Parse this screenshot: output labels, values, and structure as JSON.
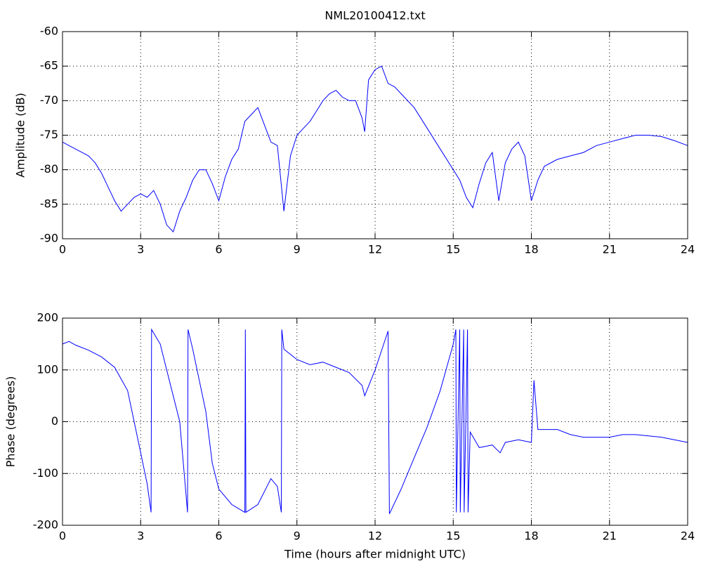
{
  "chart_data": [
    {
      "type": "line",
      "title": "NML20100412.txt",
      "ylabel": "Amplitude (dB)",
      "x": [
        0,
        0.25,
        0.5,
        0.75,
        1,
        1.25,
        1.5,
        1.75,
        2,
        2.25,
        2.5,
        2.75,
        3,
        3.25,
        3.5,
        3.75,
        4,
        4.25,
        4.5,
        4.75,
        5,
        5.25,
        5.5,
        5.75,
        6,
        6.25,
        6.5,
        6.75,
        7,
        7.25,
        7.5,
        7.75,
        8,
        8.25,
        8.5,
        8.75,
        9,
        9.25,
        9.5,
        9.75,
        10,
        10.25,
        10.5,
        10.75,
        11,
        11.25,
        11.5,
        11.6,
        11.75,
        12,
        12.25,
        12.5,
        12.75,
        13,
        13.5,
        14,
        14.5,
        15,
        15.25,
        15.5,
        15.75,
        16,
        16.25,
        16.5,
        16.75,
        17,
        17.25,
        17.5,
        17.75,
        18,
        18.25,
        18.5,
        19,
        19.5,
        20,
        20.5,
        21,
        21.5,
        22,
        22.5,
        23,
        23.5,
        24
      ],
      "series": [
        {
          "color": "#0000ff",
          "values": [
            -76,
            -76.5,
            -77,
            -77.5,
            -78,
            -79,
            -80.5,
            -82.5,
            -84.5,
            -86,
            -85,
            -84,
            -83.5,
            -84,
            -83,
            -85,
            -88,
            -89,
            -86,
            -84,
            -81.5,
            -80,
            -80,
            -82,
            -84.5,
            -81,
            -78.5,
            -77,
            -73,
            -72,
            -71,
            -73.5,
            -76,
            -76.5,
            -86,
            -78,
            -75,
            -74,
            -73,
            -71.5,
            -70,
            -69,
            -68.5,
            -69.5,
            -70,
            -70,
            -72.5,
            -74.5,
            -67,
            -65.5,
            -65,
            -67.5,
            -68,
            -69,
            -71,
            -74,
            -77,
            -80,
            -81.5,
            -84,
            -85.5,
            -82,
            -79,
            -77.5,
            -84.5,
            -79,
            -77,
            -76,
            -78,
            -84.5,
            -81.5,
            -79.5,
            -78.5,
            -78,
            -77.5,
            -76.5,
            -76,
            -75.5,
            -75,
            -75,
            -75.2,
            -75.8,
            -76.5
          ]
        }
      ],
      "xlim": [
        0,
        24
      ],
      "ylim": [
        -90,
        -60
      ],
      "xticks": [
        0,
        3,
        6,
        9,
        12,
        15,
        18,
        21,
        24
      ],
      "yticks": [
        -90,
        -85,
        -80,
        -75,
        -70,
        -65,
        -60
      ],
      "grid": true
    },
    {
      "type": "line",
      "ylabel": "Phase (degrees)",
      "xlabel": "Time (hours after midnight UTC)",
      "x": [
        0,
        0.25,
        0.5,
        1,
        1.5,
        2,
        2.5,
        3,
        3.25,
        3.4,
        3.42,
        3.75,
        4,
        4.5,
        4.8,
        4.82,
        5,
        5.5,
        5.75,
        6,
        6.5,
        7,
        7.02,
        7.04,
        7.5,
        8,
        8.25,
        8.4,
        8.42,
        8.5,
        9,
        9.5,
        10,
        10.5,
        11,
        11.5,
        11.6,
        12,
        12.5,
        12.55,
        13,
        13.5,
        14,
        14.5,
        15,
        15.1,
        15.12,
        15.25,
        15.27,
        15.4,
        15.42,
        15.55,
        15.57,
        15.65,
        16,
        16.5,
        16.8,
        17,
        17.5,
        18,
        18.1,
        18.25,
        19,
        19.5,
        20,
        21,
        21.5,
        22,
        23,
        24
      ],
      "series": [
        {
          "color": "#0000ff",
          "values": [
            150,
            155,
            148,
            138,
            125,
            105,
            60,
            -60,
            -120,
            -175,
            178,
            150,
            100,
            0,
            -175,
            178,
            140,
            20,
            -80,
            -130,
            -160,
            -175,
            178,
            -175,
            -160,
            -110,
            -125,
            -175,
            178,
            140,
            120,
            110,
            115,
            105,
            95,
            70,
            50,
            100,
            175,
            -178,
            -130,
            -70,
            -10,
            60,
            150,
            178,
            -175,
            178,
            -175,
            178,
            -175,
            178,
            -175,
            -20,
            -50,
            -45,
            -60,
            -40,
            -35,
            -40,
            80,
            -15,
            -15,
            -25,
            -30,
            -30,
            -25,
            -25,
            -30,
            -40
          ]
        }
      ],
      "xlim": [
        0,
        24
      ],
      "ylim": [
        -200,
        200
      ],
      "xticks": [
        0,
        3,
        6,
        9,
        12,
        15,
        18,
        21,
        24
      ],
      "yticks": [
        -200,
        -100,
        0,
        100,
        200
      ],
      "grid": true
    }
  ]
}
